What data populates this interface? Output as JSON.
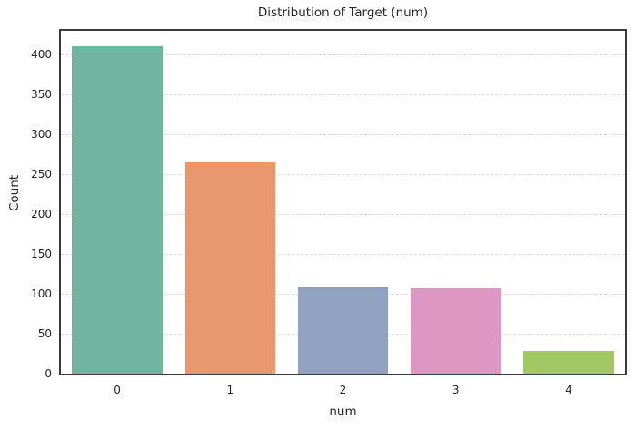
{
  "chart_data": {
    "type": "bar",
    "title": "Distribution of Target (num)",
    "xlabel": "num",
    "ylabel": "Count",
    "categories": [
      "0",
      "1",
      "2",
      "3",
      "4"
    ],
    "values": [
      411,
      265,
      109,
      107,
      28
    ],
    "bar_colors": [
      "#71b5a0",
      "#e8976f",
      "#91a2c0",
      "#dc97c3",
      "#a2c863"
    ],
    "yticks": [
      0,
      50,
      100,
      150,
      200,
      250,
      300,
      350,
      400
    ],
    "ylim": [
      0,
      430
    ],
    "bar_width_frac": 0.8,
    "grid": "horizontal dashed",
    "legend": "none",
    "spine_color": "#3a3a3a",
    "grid_color": "#d9d9d9",
    "text_color": "#262626"
  }
}
